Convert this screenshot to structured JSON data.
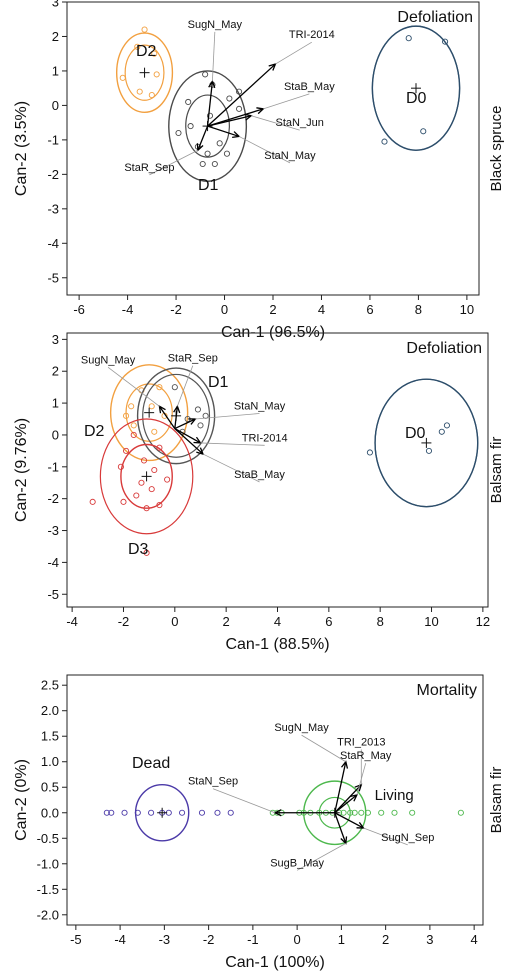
{
  "chart_data": [
    {
      "type": "scatter",
      "title": "Defoliation",
      "side_label": "Black spruce",
      "xlabel": "Can-1 (96.5%)",
      "ylabel": "Can-2 (3.5%)",
      "xlim": [
        -6.5,
        10.5
      ],
      "ylim": [
        -5.5,
        3
      ],
      "xticks": [
        -6,
        -4,
        -2,
        0,
        2,
        4,
        6,
        8,
        10
      ],
      "yticks": [
        -5,
        -4,
        -3,
        -2,
        -1,
        0,
        1,
        2,
        3
      ],
      "grid": false,
      "groups": [
        {
          "name": "D2",
          "color": "#f2a040",
          "center": [
            -3.3,
            0.95
          ],
          "rx_data": [
            1.15,
            0.8
          ],
          "ry_data": [
            1.15,
            0.8
          ],
          "points": [
            [
              -3.3,
              2.2
            ],
            [
              -3.6,
              1.7
            ],
            [
              -2.9,
              1.5
            ],
            [
              -4.2,
              0.8
            ],
            [
              -3.0,
              0.3
            ],
            [
              -2.8,
              0.9
            ],
            [
              -3.5,
              0.4
            ]
          ]
        },
        {
          "name": "D1",
          "color": "#4a4a4a",
          "center": [
            -0.7,
            -0.6
          ],
          "rx_data": [
            1.6,
            0.9
          ],
          "ry_data": [
            1.6,
            0.9
          ],
          "points": [
            [
              -0.8,
              0.9
            ],
            [
              -1.5,
              0.1
            ],
            [
              0.2,
              0.2
            ],
            [
              0.6,
              0.4
            ],
            [
              -0.5,
              0.6
            ],
            [
              -1.4,
              -0.6
            ],
            [
              -1.9,
              -0.8
            ],
            [
              -1.1,
              -1.2
            ],
            [
              -0.7,
              -1.4
            ],
            [
              -0.2,
              -1.1
            ],
            [
              0.1,
              -1.4
            ],
            [
              -0.9,
              -1.7
            ],
            [
              -0.4,
              -1.7
            ],
            [
              0.6,
              -0.1
            ],
            [
              -0.6,
              -0.3
            ]
          ]
        },
        {
          "name": "D0",
          "color": "#2d4e6b",
          "center": [
            7.9,
            0.5
          ],
          "rx_data": [
            1.8,
            1.8
          ],
          "ry_data": [
            1.8,
            1.8
          ],
          "points": [
            [
              7.6,
              1.95
            ],
            [
              9.1,
              1.85
            ],
            [
              8.2,
              -0.75
            ],
            [
              6.6,
              -1.05
            ]
          ]
        }
      ],
      "vector_origin": [
        -0.7,
        -0.6
      ],
      "vectors": [
        {
          "label": "SugN_May",
          "end": [
            -0.5,
            0.7
          ],
          "label_pos": [
            -0.4,
            2.25
          ]
        },
        {
          "label": "TRI-2014",
          "end": [
            2.1,
            1.2
          ],
          "label_pos": [
            3.6,
            1.95
          ]
        },
        {
          "label": "StaB_May",
          "end": [
            1.6,
            -0.1
          ],
          "label_pos": [
            3.5,
            0.45
          ]
        },
        {
          "label": "StaN_Jun",
          "end": [
            1.1,
            -0.3
          ],
          "label_pos": [
            3.1,
            -0.6
          ]
        },
        {
          "label": "StaN_May",
          "end": [
            0.6,
            -0.9
          ],
          "label_pos": [
            2.7,
            -1.55
          ]
        },
        {
          "label": "StaR_Sep",
          "end": [
            -1.1,
            -1.3
          ],
          "label_pos": [
            -3.1,
            -1.9
          ]
        }
      ]
    },
    {
      "type": "scatter",
      "title": "Defoliation",
      "side_label": "Balsam fir",
      "xlabel": "Can-1 (88.5%)",
      "ylabel": "Can-2 (9.76%)",
      "xlim": [
        -4.2,
        12.2
      ],
      "ylim": [
        -5.4,
        3.2
      ],
      "xticks": [
        -4,
        -2,
        0,
        2,
        4,
        6,
        8,
        10,
        12
      ],
      "yticks": [
        -5,
        -4,
        -3,
        -2,
        -1,
        0,
        1,
        2,
        3
      ],
      "grid": false,
      "groups": [
        {
          "name": "D2",
          "color": "#f2a040",
          "center": [
            -1.0,
            0.7
          ],
          "rx_data": [
            1.5,
            0.9
          ],
          "ry_data": [
            1.5,
            0.9
          ],
          "points": [
            [
              -1.3,
              1.4
            ],
            [
              -0.6,
              1.5
            ],
            [
              -1.7,
              0.9
            ],
            [
              -0.4,
              0.6
            ],
            [
              -1.6,
              0.3
            ],
            [
              -0.8,
              0.1
            ],
            [
              -1.9,
              0.6
            ],
            [
              -0.9,
              0.9
            ]
          ]
        },
        {
          "name": "D1",
          "color": "#555555",
          "center": [
            0.05,
            0.6
          ],
          "rx_data": [
            1.5,
            1.3
          ],
          "ry_data": [
            1.5,
            1.3
          ],
          "points": [
            [
              0.0,
              1.5
            ],
            [
              0.5,
              0.5
            ],
            [
              1.0,
              0.3
            ],
            [
              0.9,
              0.8
            ],
            [
              0.3,
              0.1
            ],
            [
              1.2,
              0.6
            ]
          ]
        },
        {
          "name": "D3",
          "color": "#d83a3a",
          "center": [
            -1.1,
            -1.3
          ],
          "rx_data": [
            1.0,
            1.8
          ],
          "ry_data": [
            1.0,
            1.8
          ],
          "points": [
            [
              -1.6,
              0.0
            ],
            [
              -0.6,
              -0.4
            ],
            [
              -1.9,
              -0.5
            ],
            [
              -1.2,
              -0.8
            ],
            [
              -2.1,
              -1.0
            ],
            [
              -1.3,
              -1.5
            ],
            [
              -0.9,
              -1.7
            ],
            [
              -1.5,
              -1.9
            ],
            [
              -2.0,
              -2.1
            ],
            [
              -0.8,
              -1.1
            ],
            [
              -0.3,
              -1.4
            ],
            [
              -1.1,
              -2.3
            ],
            [
              -3.2,
              -2.1
            ],
            [
              -1.1,
              -3.7
            ],
            [
              -0.6,
              -2.2
            ]
          ]
        },
        {
          "name": "D0",
          "color": "#2d4e6b",
          "center": [
            9.8,
            -0.25
          ],
          "rx_data": [
            2.0,
            2.0
          ],
          "ry_data": [
            2.0,
            2.0
          ],
          "points": [
            [
              10.6,
              0.3
            ],
            [
              10.4,
              0.1
            ],
            [
              9.9,
              -0.5
            ],
            [
              7.6,
              -0.55
            ]
          ]
        }
      ],
      "vector_origin": [
        0.0,
        0.2
      ],
      "vectors": [
        {
          "label": "SugN_May",
          "end": [
            -0.6,
            0.9
          ],
          "label_pos": [
            -2.6,
            2.25
          ]
        },
        {
          "label": "StaR_Sep",
          "end": [
            0.1,
            0.9
          ],
          "label_pos": [
            0.7,
            2.3
          ]
        },
        {
          "label": "StaN_May",
          "end": [
            0.8,
            0.5
          ],
          "label_pos": [
            3.3,
            0.8
          ]
        },
        {
          "label": "TRI-2014",
          "end": [
            1.0,
            -0.25
          ],
          "label_pos": [
            3.5,
            -0.2
          ]
        },
        {
          "label": "StaB_May",
          "end": [
            1.1,
            -0.6
          ],
          "label_pos": [
            3.3,
            -1.35
          ]
        }
      ]
    },
    {
      "type": "scatter",
      "title": "Mortality",
      "side_label": "Balsam fir",
      "xlabel": "Can-1 (100%)",
      "ylabel": "Can-2 (0%)",
      "xlim": [
        -5.2,
        4.2
      ],
      "ylim": [
        -2.2,
        2.7
      ],
      "xticks": [
        -5,
        -4,
        -3,
        -2,
        -1,
        0,
        1,
        2,
        3,
        4
      ],
      "yticks": [
        -2.0,
        -1.5,
        -1.0,
        -0.5,
        0.0,
        0.5,
        1.0,
        1.5,
        2.0,
        2.5
      ],
      "grid": false,
      "groups": [
        {
          "name": "Dead",
          "color": "#4b3aa8",
          "center": [
            -3.05,
            0.0
          ],
          "rx_data": [
            0.6
          ],
          "ry_data": [
            0.55
          ],
          "points": [
            [
              -4.3,
              0.0
            ],
            [
              -4.2,
              0.0
            ],
            [
              -3.9,
              0.0
            ],
            [
              -3.6,
              0.0
            ],
            [
              -3.3,
              0.0
            ],
            [
              -3.05,
              0.0
            ],
            [
              -2.9,
              0.0
            ],
            [
              -2.6,
              0.0
            ],
            [
              -2.15,
              0.0
            ],
            [
              -1.8,
              0.0
            ],
            [
              -1.5,
              0.0
            ]
          ]
        },
        {
          "name": "Living",
          "color": "#4db84d",
          "center": [
            0.85,
            0.0
          ],
          "rx_data": [
            0.7,
            0.35
          ],
          "ry_data": [
            0.62,
            0.3
          ],
          "points": [
            [
              -0.55,
              0.0
            ],
            [
              -0.45,
              0.0
            ],
            [
              -0.35,
              0.0
            ],
            [
              0.05,
              0.0
            ],
            [
              0.15,
              0.0
            ],
            [
              0.3,
              0.0
            ],
            [
              0.5,
              0.0
            ],
            [
              0.65,
              0.0
            ],
            [
              0.8,
              0.0
            ],
            [
              0.95,
              0.0
            ],
            [
              1.05,
              0.0
            ],
            [
              1.2,
              0.0
            ],
            [
              1.3,
              0.0
            ],
            [
              1.45,
              0.0
            ],
            [
              1.6,
              0.0
            ],
            [
              1.9,
              0.0
            ],
            [
              2.2,
              0.0
            ],
            [
              2.6,
              0.0
            ],
            [
              3.7,
              0.0
            ]
          ]
        }
      ],
      "vector_origin": [
        0.85,
        0.0
      ],
      "vectors": [
        {
          "label": "SugN_May",
          "end": [
            1.1,
            1.0
          ],
          "label_pos": [
            0.1,
            1.6
          ]
        },
        {
          "label": "TRI_2013",
          "end": [
            1.45,
            0.55
          ],
          "label_pos": [
            1.45,
            1.32
          ]
        },
        {
          "label": "StaR_May",
          "end": [
            1.35,
            0.35
          ],
          "label_pos": [
            1.55,
            1.05
          ]
        },
        {
          "label": "StaN_Sep",
          "end": [
            -0.5,
            0.0
          ],
          "label_pos": [
            -1.9,
            0.55
          ]
        },
        {
          "label": "SugN_Sep",
          "end": [
            1.5,
            -0.3
          ],
          "label_pos": [
            2.5,
            -0.55
          ]
        },
        {
          "label": "SugB_May",
          "end": [
            1.1,
            -0.6
          ],
          "label_pos": [
            0.0,
            -1.05
          ]
        }
      ],
      "extra_labels": [
        {
          "text": "Living",
          "pos": [
            1.75,
            0.25
          ]
        }
      ]
    }
  ]
}
